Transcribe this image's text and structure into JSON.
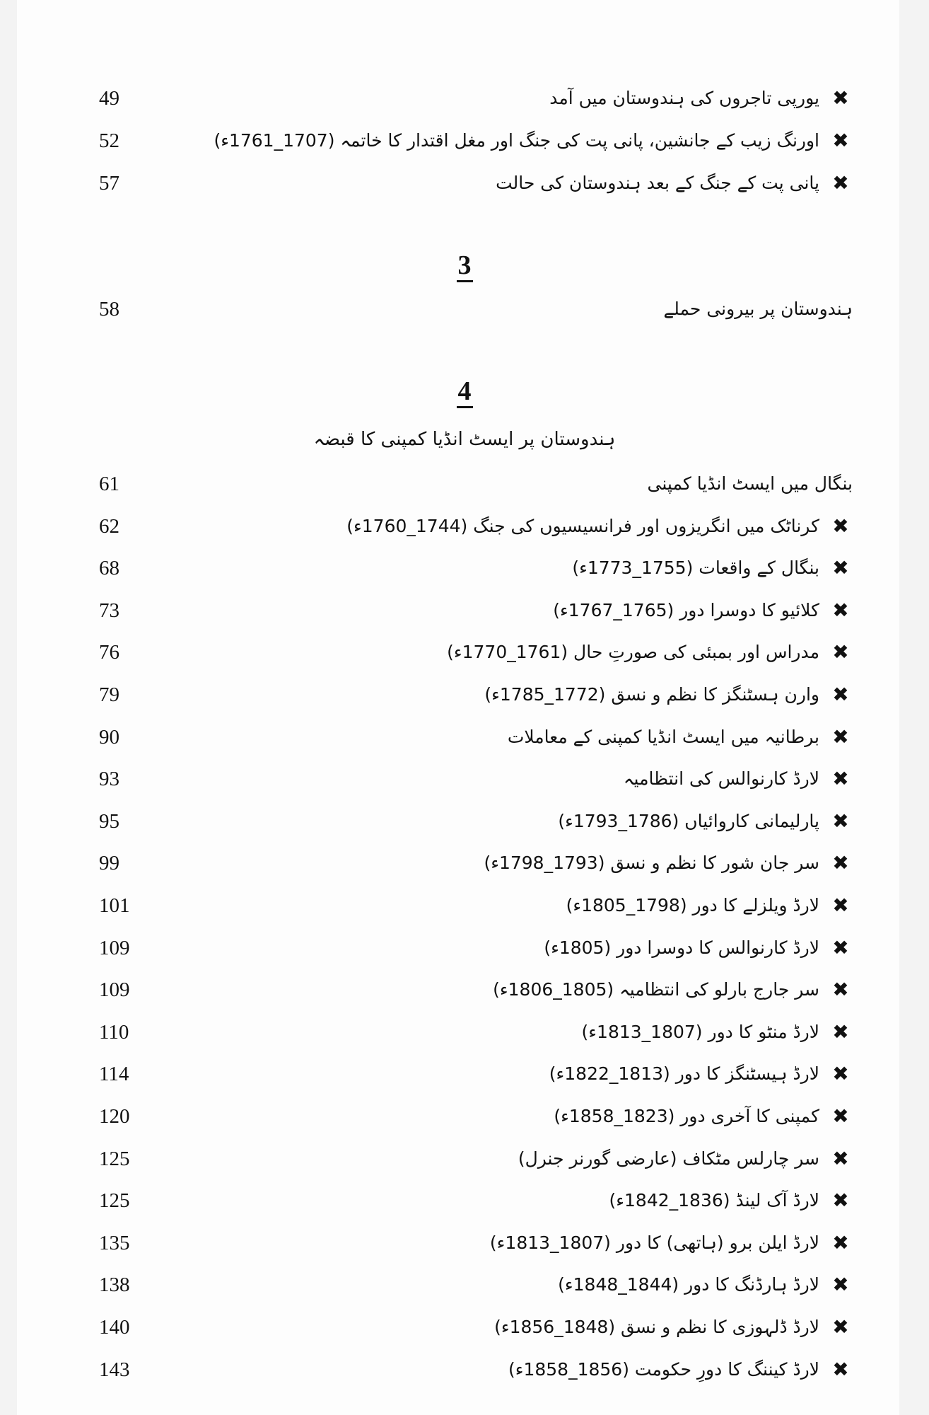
{
  "toc": {
    "group1": [
      {
        "title": "یورپی تاجروں کی ہندوستان میں آمد",
        "page": "49",
        "bullet": true
      },
      {
        "title": "اورنگ زیب کے جانشین، پانی پت کی جنگ اور مغل اقتدار کا خاتمہ (1707_1761ء)",
        "page": "52",
        "bullet": true
      },
      {
        "title": "پانی پت کے جنگ کے بعد ہندوستان کی حالت",
        "page": "57",
        "bullet": true
      }
    ],
    "chapter3": {
      "number": "3",
      "title": "ہندوستان پر بیرونی حملے",
      "page": "58"
    },
    "chapter4": {
      "number": "4",
      "title": "ہندوستان پر ایسٹ انڈیا کمپنی کا قبضہ"
    },
    "group2": [
      {
        "title": "بنگال میں ایسٹ انڈیا کمپنی",
        "page": "61",
        "bullet": false
      },
      {
        "title": "کرناٹک میں انگریزوں اور فرانسیسیوں کی جنگ (1744_1760ء)",
        "page": "62",
        "bullet": true
      },
      {
        "title": "بنگال کے واقعات (1755_1773ء)",
        "page": "68",
        "bullet": true
      },
      {
        "title": "کلائیو کا دوسرا دور (1765_1767ء)",
        "page": "73",
        "bullet": true
      },
      {
        "title": "مدراس اور بمبئی کی صورتِ حال (1761_1770ء)",
        "page": "76",
        "bullet": true
      },
      {
        "title": "وارن ہسٹنگز کا نظم و نسق (1772_1785ء)",
        "page": "79",
        "bullet": true
      },
      {
        "title": "برطانیہ میں ایسٹ انڈیا کمپنی کے معاملات",
        "page": "90",
        "bullet": true
      },
      {
        "title": "لارڈ کارنوالس کی انتظامیہ",
        "page": "93",
        "bullet": true
      },
      {
        "title": "پارلیمانی کاروائیاں (1786_1793ء)",
        "page": "95",
        "bullet": true
      },
      {
        "title": "سر جان شور کا نظم و نسق (1793_1798ء)",
        "page": "99",
        "bullet": true
      },
      {
        "title": "لارڈ ویلزلے کا دور (1798_1805ء)",
        "page": "101",
        "bullet": true
      },
      {
        "title": "لارڈ کارنوالس کا دوسرا دور (1805ء)",
        "page": "109",
        "bullet": true
      },
      {
        "title": "سر جارج بارلو کی انتظامیہ (1805_1806ء)",
        "page": "109",
        "bullet": true
      },
      {
        "title": "لارڈ منٹو کا دور (1807_1813ء)",
        "page": "110",
        "bullet": true
      },
      {
        "title": "لارڈ ہیسٹنگز کا دور (1813_1822ء)",
        "page": "114",
        "bullet": true
      },
      {
        "title": "کمپنی کا آخری دور (1823_1858ء)",
        "page": "120",
        "bullet": true
      },
      {
        "title": "سر چارلس مٹکاف (عارضی گورنر جنرل)",
        "page": "125",
        "bullet": true
      },
      {
        "title": "لارڈ آک لینڈ (1836_1842ء)",
        "page": "125",
        "bullet": true
      },
      {
        "title": "لارڈ ایلن برو (ہاتھی) کا دور (1807_1813ء)",
        "page": "135",
        "bullet": true
      },
      {
        "title": "لارڈ ہارڈنگ کا دور (1844_1848ء)",
        "page": "138",
        "bullet": true
      },
      {
        "title": "لارڈ ڈلہوزی کا نظم و نسق (1848_1856ء)",
        "page": "140",
        "bullet": true
      },
      {
        "title": "لارڈ کیننگ کا دورِ حکومت (1856_1858ء)",
        "page": "143",
        "bullet": true
      }
    ],
    "bullet_icon": "x-mark-icon",
    "bullet_glyph": "✖"
  }
}
